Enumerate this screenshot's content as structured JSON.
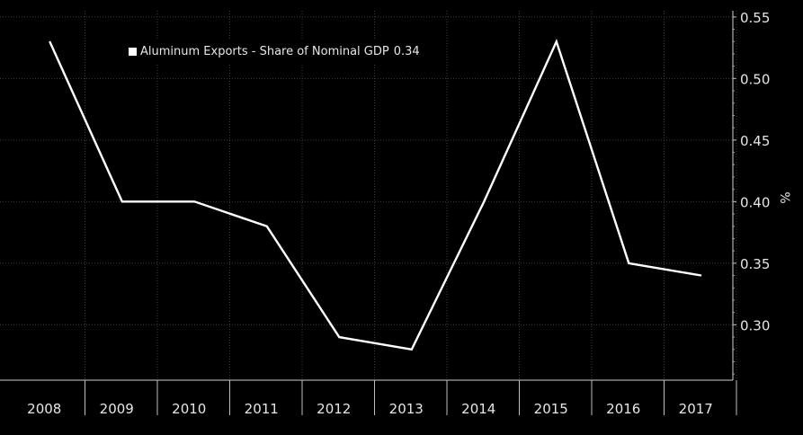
{
  "chart_data": {
    "type": "line",
    "categories": [
      "2008",
      "2009",
      "2010",
      "2011",
      "2012",
      "2013",
      "2014",
      "2015",
      "2016",
      "2017"
    ],
    "series": [
      {
        "name": "Aluminum Exports - Share of Nominal GDP",
        "last_value_label": "0.34",
        "color": "#ffffff",
        "points": [
          {
            "x": 2008.5,
            "y": 0.53
          },
          {
            "x": 2009.5,
            "y": 0.4
          },
          {
            "x": 2010.5,
            "y": 0.4
          },
          {
            "x": 2011.5,
            "y": 0.38
          },
          {
            "x": 2012.5,
            "y": 0.29
          },
          {
            "x": 2013.5,
            "y": 0.28
          },
          {
            "x": 2014.5,
            "y": 0.4
          },
          {
            "x": 2015.5,
            "y": 0.53
          },
          {
            "x": 2016.5,
            "y": 0.35
          },
          {
            "x": 2017.5,
            "y": 0.34
          }
        ]
      }
    ],
    "y_ticks": [
      "0.30",
      "0.35",
      "0.40",
      "0.45",
      "0.50",
      "0.55"
    ],
    "ylim": [
      0.255,
      0.555
    ],
    "ylabel": "%",
    "y_axis_side": "right",
    "grid": true,
    "legend_position": "top-left",
    "background": "#000000"
  }
}
